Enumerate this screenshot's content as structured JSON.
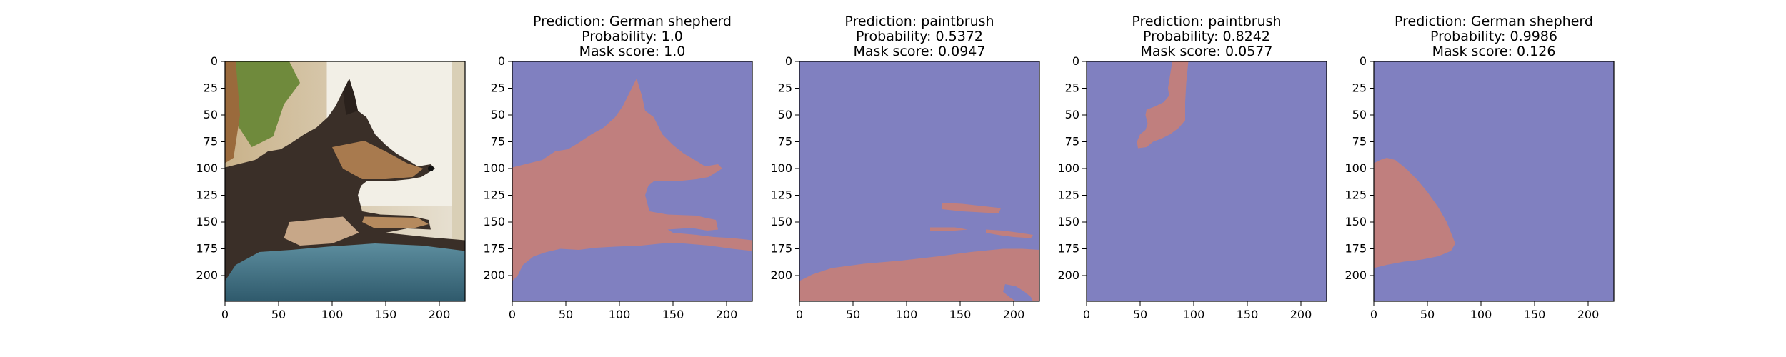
{
  "chart_data": [
    {
      "type": "image",
      "panel": "original",
      "title_lines": [],
      "xlim": [
        0,
        224
      ],
      "ylim": [
        224,
        0
      ],
      "x_ticks": [
        0,
        50,
        100,
        150,
        200
      ],
      "y_ticks": [
        0,
        25,
        50,
        75,
        100,
        125,
        150,
        175,
        200
      ]
    },
    {
      "type": "heatmap",
      "panel": "mask-1",
      "title_lines": [
        "Prediction: German shepherd",
        "Probability: 1.0",
        "Mask score: 1.0"
      ],
      "xlim": [
        0,
        224
      ],
      "ylim": [
        224,
        0
      ],
      "x_ticks": [
        0,
        50,
        100,
        150,
        200
      ],
      "y_ticks": [
        0,
        25,
        50,
        75,
        100,
        125,
        150,
        175,
        200
      ],
      "mask_regions": [
        [
          [
            0,
            99
          ],
          [
            28,
            92
          ],
          [
            40,
            84
          ],
          [
            52,
            82
          ],
          [
            62,
            76
          ],
          [
            74,
            68
          ],
          [
            85,
            62
          ],
          [
            96,
            52
          ],
          [
            103,
            42
          ],
          [
            110,
            28
          ],
          [
            116,
            16
          ],
          [
            121,
            32
          ],
          [
            124,
            46
          ],
          [
            132,
            52
          ],
          [
            140,
            68
          ],
          [
            150,
            78
          ],
          [
            160,
            86
          ],
          [
            172,
            93
          ],
          [
            180,
            98
          ],
          [
            192,
            96
          ],
          [
            196,
            100
          ],
          [
            183,
            108
          ],
          [
            172,
            110
          ],
          [
            152,
            112
          ],
          [
            132,
            112
          ],
          [
            127,
            116
          ],
          [
            124,
            125
          ],
          [
            128,
            140
          ],
          [
            145,
            143
          ],
          [
            172,
            144
          ],
          [
            180,
            146
          ],
          [
            190,
            148
          ],
          [
            192,
            157
          ],
          [
            182,
            158
          ],
          [
            170,
            156
          ],
          [
            160,
            156
          ],
          [
            145,
            157
          ],
          [
            150,
            160
          ],
          [
            172,
            162
          ],
          [
            188,
            164
          ],
          [
            205,
            165
          ],
          [
            215,
            166
          ],
          [
            224,
            167
          ],
          [
            224,
            177
          ],
          [
            205,
            175
          ],
          [
            184,
            172
          ],
          [
            160,
            170
          ],
          [
            140,
            170
          ],
          [
            120,
            172
          ],
          [
            96,
            173
          ],
          [
            78,
            174
          ],
          [
            62,
            176
          ],
          [
            45,
            175
          ],
          [
            32,
            178
          ],
          [
            20,
            182
          ],
          [
            10,
            190
          ],
          [
            5,
            200
          ],
          [
            0,
            205
          ]
        ]
      ]
    },
    {
      "type": "heatmap",
      "panel": "mask-2",
      "title_lines": [
        "Prediction: paintbrush",
        "Probability: 0.5372",
        "Mask score: 0.0947"
      ],
      "xlim": [
        0,
        224
      ],
      "ylim": [
        224,
        0
      ],
      "x_ticks": [
        0,
        50,
        100,
        150,
        200
      ],
      "y_ticks": [
        0,
        25,
        50,
        75,
        100,
        125,
        150,
        175,
        200
      ],
      "mask_regions": [
        [
          [
            0,
            205
          ],
          [
            12,
            199
          ],
          [
            30,
            193
          ],
          [
            60,
            189
          ],
          [
            95,
            186
          ],
          [
            130,
            182
          ],
          [
            160,
            178
          ],
          [
            190,
            175
          ],
          [
            208,
            175
          ],
          [
            224,
            176
          ],
          [
            224,
            224
          ],
          [
            0,
            224
          ]
        ],
        [
          [
            133,
            132
          ],
          [
            152,
            133
          ],
          [
            170,
            135
          ],
          [
            188,
            137
          ],
          [
            186,
            142
          ],
          [
            170,
            141
          ],
          [
            152,
            140
          ],
          [
            133,
            138
          ]
        ],
        [
          [
            122,
            155
          ],
          [
            145,
            155
          ],
          [
            157,
            157
          ],
          [
            145,
            158
          ],
          [
            122,
            158
          ]
        ],
        [
          [
            174,
            157
          ],
          [
            190,
            158
          ],
          [
            205,
            160
          ],
          [
            218,
            162
          ],
          [
            216,
            165
          ],
          [
            200,
            164
          ],
          [
            185,
            162
          ],
          [
            174,
            160
          ]
        ]
      ],
      "unmasked_holes": [
        [
          [
            192,
            208
          ],
          [
            202,
            210
          ],
          [
            210,
            215
          ],
          [
            216,
            220
          ],
          [
            218,
            224
          ],
          [
            202,
            224
          ],
          [
            196,
            220
          ],
          [
            190,
            215
          ]
        ]
      ]
    },
    {
      "type": "heatmap",
      "panel": "mask-3",
      "title_lines": [
        "Prediction: paintbrush",
        "Probability: 0.8242",
        "Mask score: 0.0577"
      ],
      "xlim": [
        0,
        224
      ],
      "ylim": [
        224,
        0
      ],
      "x_ticks": [
        0,
        50,
        100,
        150,
        200
      ],
      "y_ticks": [
        0,
        25,
        50,
        75,
        100,
        125,
        150,
        175,
        200
      ],
      "mask_regions": [
        [
          [
            80,
            0
          ],
          [
            95,
            0
          ],
          [
            93,
            20
          ],
          [
            92,
            38
          ],
          [
            92,
            55
          ],
          [
            86,
            62
          ],
          [
            78,
            68
          ],
          [
            70,
            72
          ],
          [
            62,
            75
          ],
          [
            56,
            80
          ],
          [
            48,
            81
          ],
          [
            47,
            75
          ],
          [
            50,
            68
          ],
          [
            55,
            64
          ],
          [
            57,
            58
          ],
          [
            55,
            50
          ],
          [
            56,
            45
          ],
          [
            64,
            42
          ],
          [
            72,
            38
          ],
          [
            77,
            32
          ],
          [
            76,
            25
          ]
        ]
      ]
    },
    {
      "type": "heatmap",
      "panel": "mask-4",
      "title_lines": [
        "Prediction: German shepherd",
        "Probability: 0.9986",
        "Mask score: 0.126"
      ],
      "xlim": [
        0,
        224
      ],
      "ylim": [
        224,
        0
      ],
      "x_ticks": [
        0,
        50,
        100,
        150,
        200
      ],
      "y_ticks": [
        0,
        25,
        50,
        75,
        100,
        125,
        150,
        175,
        200
      ],
      "mask_regions": [
        [
          [
            0,
            95
          ],
          [
            6,
            92
          ],
          [
            12,
            90
          ],
          [
            20,
            92
          ],
          [
            30,
            100
          ],
          [
            40,
            110
          ],
          [
            50,
            122
          ],
          [
            60,
            136
          ],
          [
            68,
            150
          ],
          [
            72,
            160
          ],
          [
            76,
            170
          ],
          [
            72,
            177
          ],
          [
            60,
            182
          ],
          [
            45,
            185
          ],
          [
            28,
            187
          ],
          [
            12,
            190
          ],
          [
            0,
            193
          ]
        ]
      ]
    }
  ],
  "colors": {
    "mask_background": "#8080c0",
    "mask_foreground": "#c07f7e",
    "axis": "#000000"
  }
}
